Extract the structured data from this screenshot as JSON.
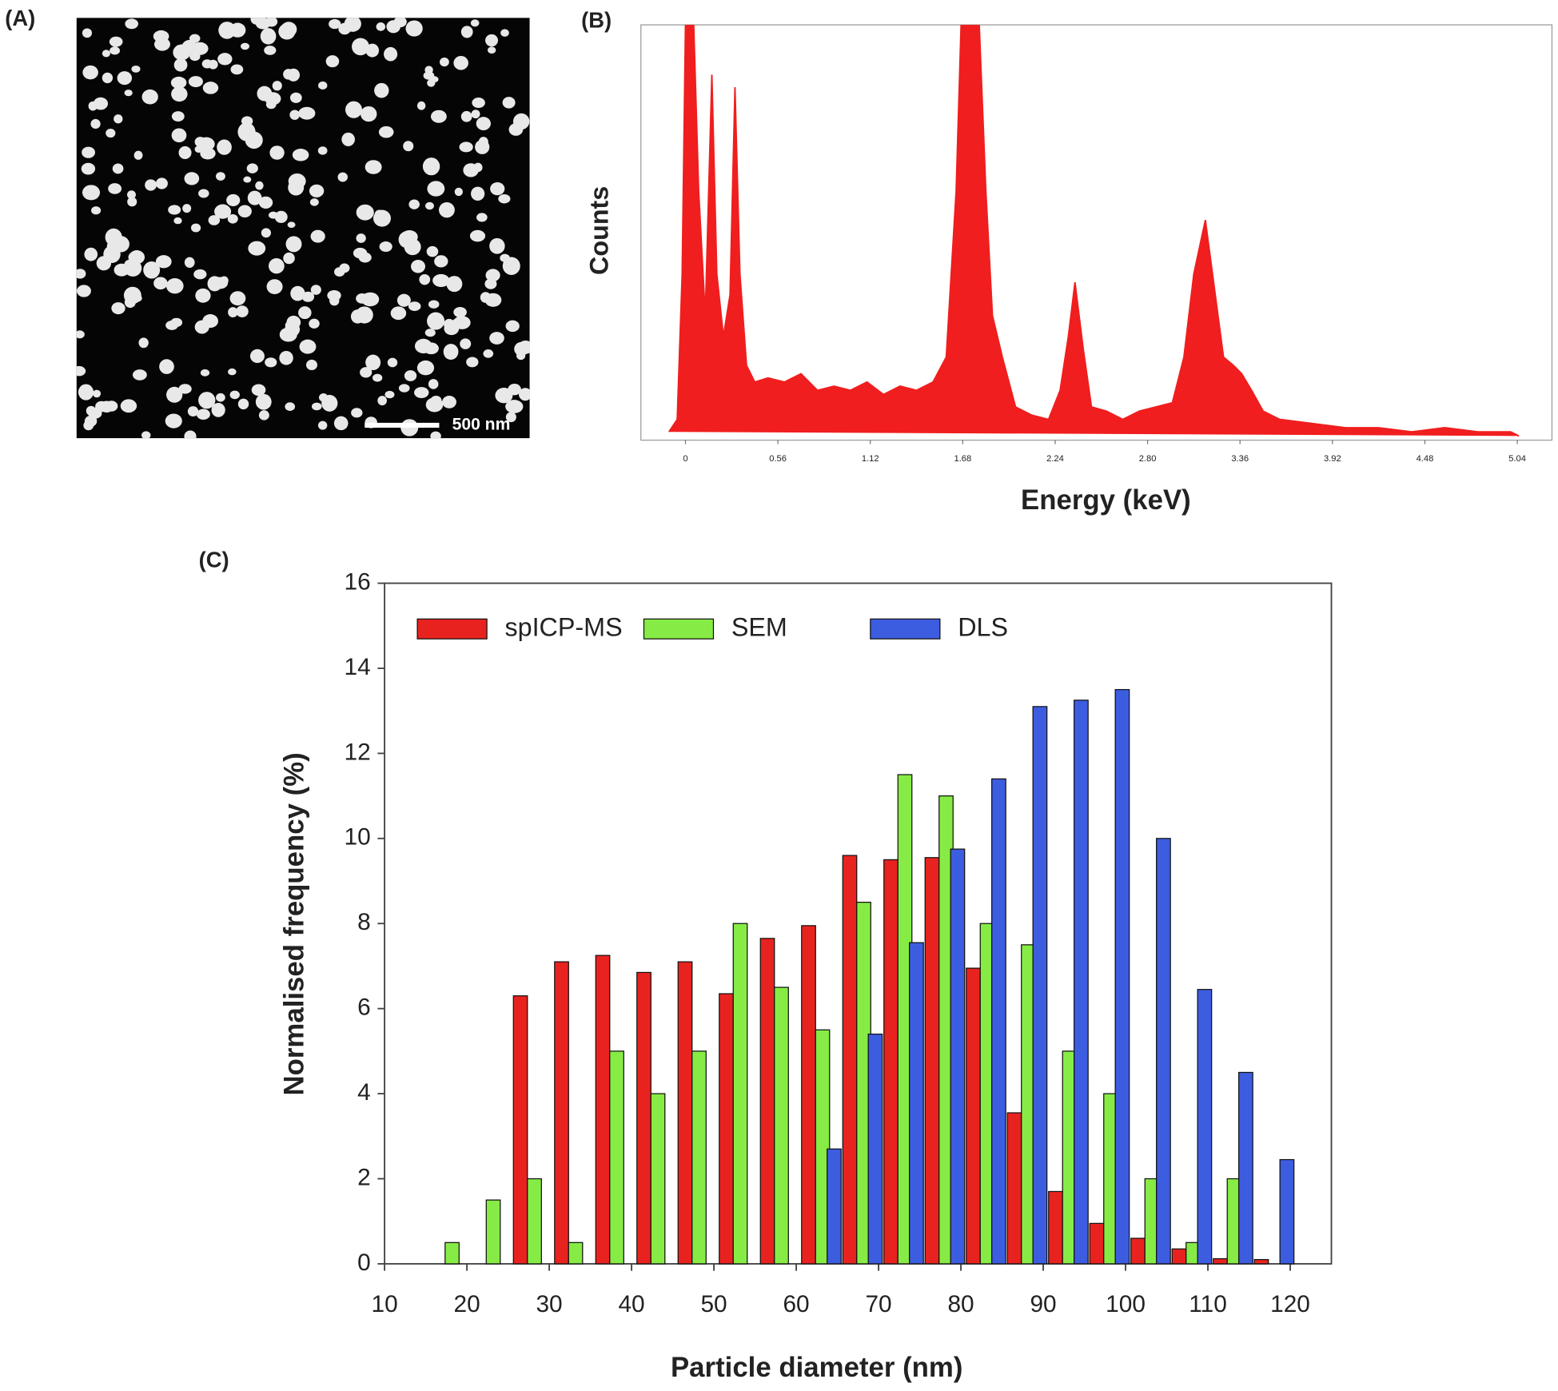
{
  "image_panel": {
    "label": "(A)",
    "scale_bar": "500 nm"
  },
  "chart_data": [
    {
      "type": "area",
      "label": "(B)",
      "ylabel": "Counts",
      "xlabel": "Energy (keV)",
      "color": "#f01e1e",
      "x": [
        -0.1,
        -0.05,
        -0.02,
        0.0,
        0.05,
        0.08,
        0.12,
        0.16,
        0.19,
        0.23,
        0.27,
        0.3,
        0.33,
        0.37,
        0.42,
        0.5,
        0.6,
        0.7,
        0.8,
        0.9,
        1.0,
        1.1,
        1.2,
        1.3,
        1.4,
        1.5,
        1.58,
        1.64,
        1.67,
        1.78,
        1.82,
        1.86,
        1.92,
        2.0,
        2.1,
        2.2,
        2.27,
        2.32,
        2.36,
        2.41,
        2.46,
        2.55,
        2.65,
        2.75,
        2.85,
        2.95,
        3.02,
        3.08,
        3.15,
        3.2,
        3.26,
        3.32,
        3.37,
        3.43,
        3.5,
        3.6,
        3.8,
        4.0,
        4.2,
        4.4,
        4.6,
        4.8,
        5.0,
        5.05
      ],
      "values": [
        2,
        5,
        40,
        100,
        100,
        60,
        30,
        88,
        40,
        25,
        35,
        85,
        40,
        18,
        14,
        15,
        14,
        16,
        12,
        13,
        12,
        14,
        11,
        13,
        12,
        14,
        20,
        60,
        100,
        100,
        60,
        30,
        20,
        8,
        6,
        5,
        12,
        25,
        38,
        22,
        8,
        7,
        5,
        7,
        8,
        9,
        20,
        40,
        53,
        38,
        20,
        18,
        16,
        12,
        7,
        5,
        4,
        3,
        3,
        2,
        3,
        2,
        2,
        1
      ],
      "xlim": [
        -0.27,
        5.25
      ],
      "ylim": [
        0,
        100
      ],
      "xticks": [
        0,
        0.56,
        1.12,
        1.68,
        2.24,
        {
          "value": 2.8,
          "label": "2.80"
        },
        3.36,
        3.92,
        4.48,
        5.04
      ]
    },
    {
      "type": "bar",
      "label": "(C)",
      "xlabel": "Particle diameter (nm)",
      "ylabel": "Normalised frequency (%)",
      "x": [
        15,
        20,
        25,
        30,
        35,
        40,
        45,
        50,
        55,
        60,
        65,
        70,
        75,
        80,
        85,
        90,
        95,
        100,
        105,
        110,
        115,
        120
      ],
      "series": [
        {
          "name": "spICP-MS",
          "color": "#e8231f",
          "values": [
            null,
            null,
            6.3,
            7.1,
            7.25,
            6.85,
            7.1,
            6.35,
            7.65,
            7.95,
            9.6,
            9.5,
            9.55,
            6.95,
            3.55,
            1.7,
            0.95,
            0.6,
            0.35,
            0.12,
            0.1,
            null
          ]
        },
        {
          "name": "SEM",
          "color": "#86ec45",
          "values": [
            0.5,
            1.5,
            2.0,
            0.5,
            5.0,
            4.0,
            5.0,
            8.0,
            6.5,
            5.5,
            8.5,
            11.5,
            11.0,
            8.0,
            7.5,
            5.0,
            4.0,
            2.0,
            0.5,
            2.0,
            null,
            null
          ]
        },
        {
          "name": "DLS",
          "color": "#3d5de0",
          "values": [
            null,
            null,
            null,
            null,
            null,
            null,
            null,
            null,
            null,
            null,
            2.7,
            5.4,
            7.55,
            9.75,
            11.4,
            13.1,
            13.25,
            13.5,
            10.0,
            6.45,
            4.5,
            2.45
          ]
        }
      ],
      "xlim": [
        10,
        125
      ],
      "ylim": [
        0,
        16
      ],
      "xticks": [
        10,
        20,
        30,
        40,
        50,
        60,
        70,
        80,
        90,
        100,
        110,
        120
      ],
      "yticks": [
        0,
        2,
        4,
        6,
        8,
        10,
        12,
        14,
        16
      ],
      "legend": "upper left"
    }
  ]
}
